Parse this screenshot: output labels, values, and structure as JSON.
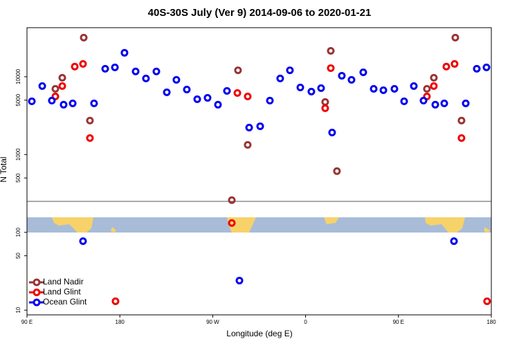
{
  "chart_data": {
    "type": "scatter",
    "title": "40S-30S July (Ver 9)   2014-09-06 to 2020-01-21",
    "x_label": "Longitude (deg E)",
    "y_label": "N Total",
    "ylog": true,
    "legend": "bottom-left",
    "xlim": [
      90,
      540
    ],
    "xticks": [
      {
        "value": 90,
        "label": "90 E"
      },
      180,
      {
        "value": 270,
        "label": "90 W"
      },
      {
        "value": 360,
        "label": "0"
      },
      {
        "value": 450,
        "label": "90 E"
      },
      {
        "value": 540,
        "label": "180"
      }
    ],
    "ylim": [
      8.7,
      42700
    ],
    "yticks": [
      10,
      50,
      100,
      500,
      1000,
      5000,
      10000
    ],
    "series": [
      {
        "name": "Land Nadir",
        "color": "#993333",
        "x": [
          117.5,
          124.2,
          145.0,
          151.0,
          288.5,
          294.5,
          303.9,
          379.0,
          384.4,
          390.4,
          477.6,
          484.3,
          505.1,
          511.1
        ],
        "values": [
          6990,
          9700,
          31800,
          2730,
          259,
          12100,
          1330,
          4740,
          21500,
          612,
          6990,
          9700,
          31800,
          2730
        ]
      },
      {
        "name": "Land Glint",
        "color": "#ee0000",
        "x": [
          117.5,
          124.2,
          136.3,
          144.3,
          151.0,
          175.8,
          288.5,
          293.9,
          303.9,
          379.0,
          384.4,
          477.6,
          484.3,
          496.4,
          504.4,
          511.1,
          535.9
        ],
        "values": [
          5580,
          7590,
          13500,
          14600,
          1630,
          13,
          132,
          6180,
          5580,
          3940,
          12900,
          5580,
          7590,
          13500,
          14600,
          1630,
          13
        ]
      },
      {
        "name": "Ocean Glint",
        "color": "#0000ee",
        "x": [
          94.7,
          104.8,
          114.1,
          125.5,
          134.3,
          144.3,
          155.0,
          165.8,
          175.2,
          184.5,
          195.3,
          205.3,
          215.4,
          225.5,
          234.8,
          244.9,
          255.0,
          265.0,
          275.1,
          283.8,
          295.9,
          305.3,
          316.0,
          325.4,
          335.4,
          344.8,
          354.9,
          365.6,
          375.0,
          385.7,
          395.1,
          404.5,
          415.9,
          426.0,
          435.4,
          446.1,
          455.5,
          464.9,
          474.3,
          485.7,
          494.4,
          503.8,
          515.2,
          525.9,
          535.3
        ],
        "values": [
          4830,
          7590,
          4930,
          4370,
          4550,
          77,
          4550,
          12650,
          13200,
          20300,
          11700,
          9500,
          11700,
          6310,
          9120,
          6850,
          5140,
          5350,
          4370,
          6570,
          24,
          2220,
          2310,
          4930,
          9500,
          12100,
          7280,
          6440,
          7130,
          1920,
          10300,
          9120,
          11400,
          6990,
          6710,
          6990,
          4830,
          7590,
          4930,
          4370,
          4550,
          77,
          4550,
          12650,
          13200
        ]
      }
    ]
  }
}
